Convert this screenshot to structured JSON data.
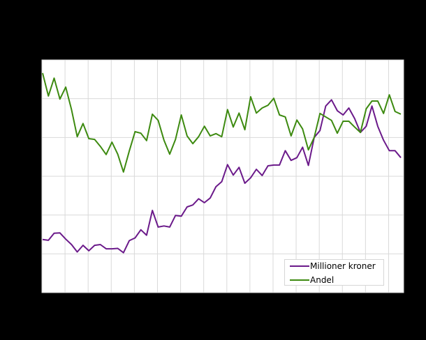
{
  "chart_data": {
    "type": "line",
    "title": "",
    "xlabel": "",
    "ylabel": "",
    "note": "Axis tick labels are rendered black on black background (not visible); values expressed in gridline units (0 = bottom gridline, 6 = top).",
    "ylim": [
      0,
      6
    ],
    "y_gridlines": [
      0,
      1,
      2,
      3,
      4,
      5,
      6
    ],
    "x_gridline_count": 16,
    "grid": true,
    "legend_position": "lower right",
    "x": [
      0,
      1,
      2,
      3,
      4,
      5,
      6,
      7,
      8,
      9,
      10,
      11,
      12,
      13,
      14,
      15,
      16,
      17,
      18,
      19,
      20,
      21,
      22,
      23,
      24,
      25,
      26,
      27,
      28,
      29,
      30,
      31,
      32,
      33,
      34,
      35,
      36,
      37,
      38,
      39,
      40,
      41,
      42,
      43,
      44,
      45,
      46,
      47,
      48,
      49,
      50,
      51,
      52,
      53,
      54,
      55,
      56,
      57,
      58,
      59,
      60,
      61,
      62
    ],
    "series": [
      {
        "name": "Millioner kroner",
        "color": "#6b1a8a",
        "values": [
          1.37,
          1.35,
          1.53,
          1.54,
          1.38,
          1.24,
          1.05,
          1.22,
          1.08,
          1.22,
          1.24,
          1.13,
          1.13,
          1.14,
          1.03,
          1.34,
          1.41,
          1.62,
          1.48,
          2.12,
          1.69,
          1.72,
          1.69,
          1.99,
          1.97,
          2.21,
          2.26,
          2.42,
          2.32,
          2.44,
          2.73,
          2.86,
          3.3,
          3.03,
          3.23,
          2.82,
          2.96,
          3.18,
          3.02,
          3.27,
          3.29,
          3.29,
          3.66,
          3.41,
          3.48,
          3.75,
          3.28,
          4.0,
          4.18,
          4.81,
          4.97,
          4.69,
          4.58,
          4.76,
          4.49,
          4.13,
          4.29,
          4.81,
          4.29,
          3.93,
          3.66,
          3.66,
          3.48
        ]
      },
      {
        "name": "Andel",
        "color": "#3d8a10",
        "values": [
          5.66,
          5.07,
          5.53,
          4.99,
          5.3,
          4.72,
          4.02,
          4.36,
          3.97,
          3.95,
          3.77,
          3.56,
          3.88,
          3.57,
          3.11,
          3.65,
          4.15,
          4.11,
          3.92,
          4.6,
          4.44,
          3.93,
          3.57,
          3.95,
          4.58,
          4.04,
          3.84,
          4.02,
          4.29,
          4.04,
          4.1,
          4.02,
          4.72,
          4.27,
          4.63,
          4.2,
          5.05,
          4.63,
          4.76,
          4.83,
          5.01,
          4.58,
          4.53,
          4.04,
          4.45,
          4.22,
          3.68,
          4.0,
          4.62,
          4.53,
          4.44,
          4.11,
          4.42,
          4.42,
          4.27,
          4.13,
          4.74,
          4.94,
          4.94,
          4.62,
          5.1,
          4.67,
          4.6
        ]
      }
    ]
  },
  "legend": {
    "items": [
      {
        "label": "Millioner kroner",
        "color": "#6b1a8a"
      },
      {
        "label": "Andel",
        "color": "#3d8a10"
      }
    ]
  },
  "plot": {
    "background": "#ffffff",
    "gridline_color": "#d9d9d9",
    "page_background": "#000000"
  }
}
